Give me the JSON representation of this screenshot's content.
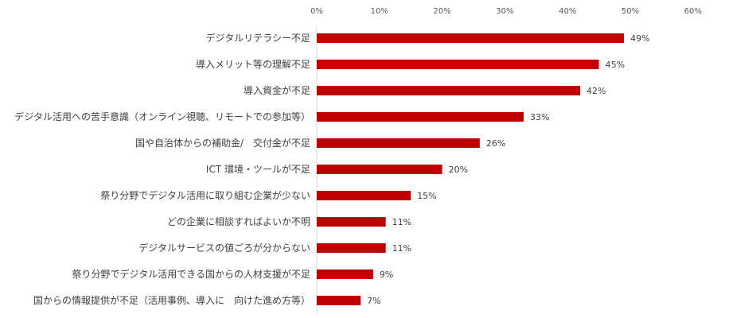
{
  "chart_data": {
    "type": "bar",
    "orientation": "horizontal",
    "categories": [
      "デジタルリテラシー不足",
      "導入メリット等の理解不足",
      "導入資金が不足",
      "デジタル活用への苦手意識（オンライン視聴、リモートでの参加等）",
      "国や自治体からの補助金/　交付金が不足",
      "ICT 環境・ツールが不足",
      "祭り分野でデジタル活用に取り組む企業が少ない",
      "どの企業に相談すればよいか不明",
      "デジタルサービスの値ごろが分からない",
      "祭り分野でデジタル活用できる国からの人材支援が不足",
      "国からの情報提供が不足（活用事例、導入に　向けた進め方等）"
    ],
    "values": [
      49,
      45,
      42,
      33,
      26,
      20,
      15,
      11,
      11,
      9,
      7
    ],
    "value_labels": [
      "49%",
      "45%",
      "42%",
      "33%",
      "26%",
      "20%",
      "15%",
      "11%",
      "11%",
      "9%",
      "7%"
    ],
    "xlim": [
      0,
      60
    ],
    "ticks": [
      0,
      10,
      20,
      30,
      40,
      50,
      60
    ],
    "tick_labels": [
      "0%",
      "10%",
      "20%",
      "30%",
      "40%",
      "50%",
      "60%"
    ],
    "axis_position": "top",
    "grid": false,
    "bar_color": "#c00000",
    "axis_color": "#d9d9d9",
    "title": "",
    "xlabel": "",
    "ylabel": ""
  }
}
